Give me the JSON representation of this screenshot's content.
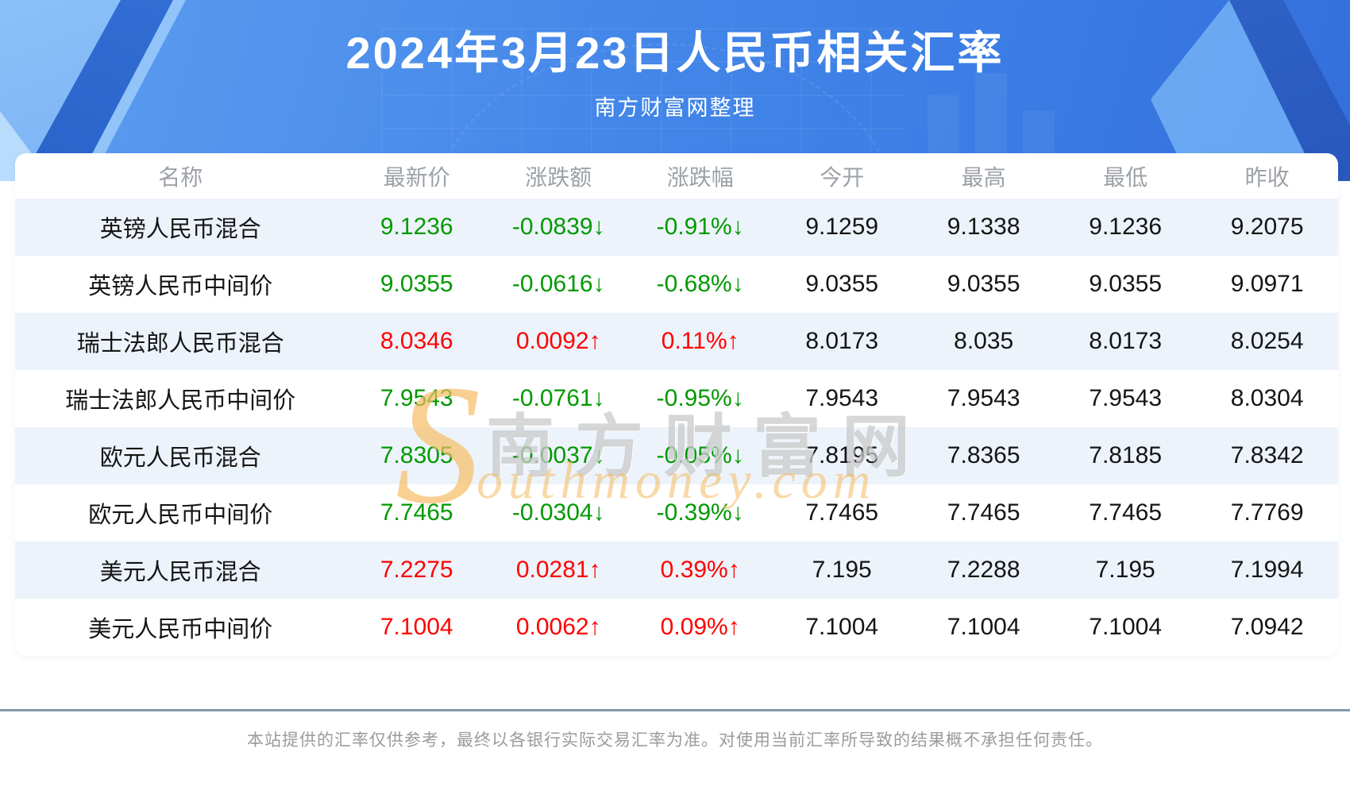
{
  "banner": {
    "title": "2024年3月23日人民币相关汇率",
    "subtitle": "南方财富网整理"
  },
  "table": {
    "columns": [
      "名称",
      "最新价",
      "涨跌额",
      "涨跌幅",
      "今开",
      "最高",
      "最低",
      "昨收"
    ],
    "rows": [
      {
        "name": "英镑人民币混合",
        "latest": "9.1236",
        "change": "-0.0839↓",
        "change_pct": "-0.91%↓",
        "open": "9.1259",
        "high": "9.1338",
        "low": "9.1236",
        "prev_close": "9.2075",
        "trend": "down"
      },
      {
        "name": "英镑人民币中间价",
        "latest": "9.0355",
        "change": "-0.0616↓",
        "change_pct": "-0.68%↓",
        "open": "9.0355",
        "high": "9.0355",
        "low": "9.0355",
        "prev_close": "9.0971",
        "trend": "down"
      },
      {
        "name": "瑞士法郎人民币混合",
        "latest": "8.0346",
        "change": "0.0092↑",
        "change_pct": "0.11%↑",
        "open": "8.0173",
        "high": "8.035",
        "low": "8.0173",
        "prev_close": "8.0254",
        "trend": "up"
      },
      {
        "name": "瑞士法郎人民币中间价",
        "latest": "7.9543",
        "change": "-0.0761↓",
        "change_pct": "-0.95%↓",
        "open": "7.9543",
        "high": "7.9543",
        "low": "7.9543",
        "prev_close": "8.0304",
        "trend": "down"
      },
      {
        "name": "欧元人民币混合",
        "latest": "7.8305",
        "change": "-0.0037↓",
        "change_pct": "-0.05%↓",
        "open": "7.8195",
        "high": "7.8365",
        "low": "7.8185",
        "prev_close": "7.8342",
        "trend": "down"
      },
      {
        "name": "欧元人民币中间价",
        "latest": "7.7465",
        "change": "-0.0304↓",
        "change_pct": "-0.39%↓",
        "open": "7.7465",
        "high": "7.7465",
        "low": "7.7465",
        "prev_close": "7.7769",
        "trend": "down"
      },
      {
        "name": "美元人民币混合",
        "latest": "7.2275",
        "change": "0.0281↑",
        "change_pct": "0.39%↑",
        "open": "7.195",
        "high": "7.2288",
        "low": "7.195",
        "prev_close": "7.1994",
        "trend": "up"
      },
      {
        "name": "美元人民币中间价",
        "latest": "7.1004",
        "change": "0.0062↑",
        "change_pct": "0.09%↑",
        "open": "7.1004",
        "high": "7.1004",
        "low": "7.1004",
        "prev_close": "7.0942",
        "trend": "up"
      }
    ]
  },
  "watermark": {
    "initial": "S",
    "cn": "南方财富网",
    "en": "outhmoney.com"
  },
  "footer": {
    "disclaimer": "本站提供的汇率仅供参考，最终以各银行实际交易汇率为准。对使用当前汇率所导致的结果概不承担任何责任。"
  },
  "colors": {
    "banner_blue": "#4487e9",
    "up_red": "#ff0000",
    "down_green": "#009900",
    "stripe_row": "#edf3fb",
    "divider": "#8296ab",
    "header_text": "#9da2a8"
  }
}
